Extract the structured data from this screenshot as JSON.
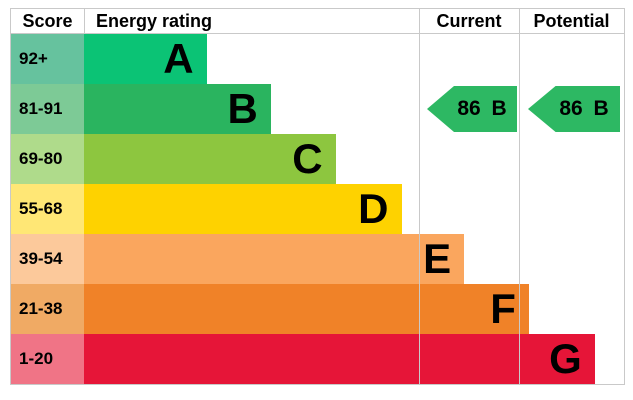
{
  "headers": {
    "score": "Score",
    "rating": "Energy rating",
    "current": "Current",
    "potential": "Potential"
  },
  "bands": [
    {
      "letter": "A",
      "score": "92+",
      "bar_color": "#0bc375",
      "score_color": "#66c29e",
      "width_pct": 22.7
    },
    {
      "letter": "B",
      "score": "81-91",
      "bar_color": "#2ab45f",
      "score_color": "#7dca96",
      "width_pct": 34.6
    },
    {
      "letter": "C",
      "score": "69-80",
      "bar_color": "#8dc63f",
      "score_color": "#afdb8b",
      "width_pct": 46.6
    },
    {
      "letter": "D",
      "score": "55-68",
      "bar_color": "#fed200",
      "score_color": "#ffe775",
      "width_pct": 58.8
    },
    {
      "letter": "E",
      "score": "39-54",
      "bar_color": "#faa65e",
      "score_color": "#fcc99b",
      "width_pct": 70.4
    },
    {
      "letter": "F",
      "score": "21-38",
      "bar_color": "#f08228",
      "score_color": "#f0aa64",
      "width_pct": 82.4
    },
    {
      "letter": "G",
      "score": "1-20",
      "bar_color": "#e61538",
      "score_color": "#f07486",
      "width_pct": 94.6
    }
  ],
  "current": {
    "label": "86 B",
    "score": 86,
    "band": "B",
    "band_index": 1,
    "arrow_color": "#2db863"
  },
  "potential": {
    "label": "86 B",
    "score": 86,
    "band": "B",
    "band_index": 1,
    "arrow_color": "#2db863"
  },
  "chart_data": {
    "type": "bar",
    "title": "Energy rating (EPC band chart)",
    "columns": [
      "Score",
      "Energy rating",
      "Current",
      "Potential"
    ],
    "categories": [
      "A",
      "B",
      "C",
      "D",
      "E",
      "F",
      "G"
    ],
    "score_ranges": [
      "92+",
      "81-91",
      "69-80",
      "55-68",
      "39-54",
      "21-38",
      "1-20"
    ],
    "values": [
      22.7,
      34.6,
      46.6,
      58.8,
      70.4,
      82.4,
      94.6
    ],
    "value_unit": "bar width as percent of rating column",
    "band_colors": [
      "#0bc375",
      "#2ab45f",
      "#8dc63f",
      "#fed200",
      "#faa65e",
      "#f08228",
      "#e61538"
    ],
    "current": {
      "score": 86,
      "band": "B"
    },
    "potential": {
      "score": 86,
      "band": "B"
    },
    "legend_position": "none",
    "grid": false
  }
}
